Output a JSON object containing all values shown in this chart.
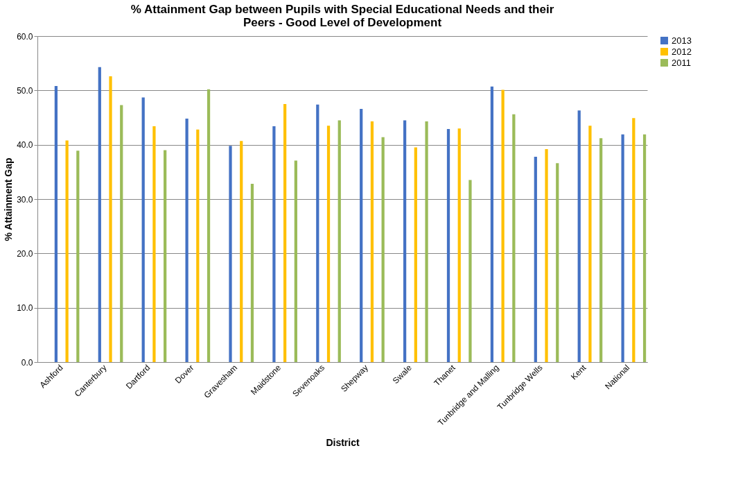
{
  "chart_data": {
    "type": "bar",
    "title": [
      "% Attainment Gap between Pupils with Special Educational Needs and their",
      "Peers - Good Level of Development"
    ],
    "xlabel": "District",
    "ylabel": "% Attainment Gap",
    "categories": [
      "Ashford",
      "Canterbury",
      "Dartford",
      "Dover",
      "Gravesham",
      "Maidstone",
      "Sevenoaks",
      "Shepway",
      "Swale",
      "Thanet",
      "Tunbridge and Malling",
      "Tunbridge Wells",
      "Kent",
      "National"
    ],
    "series": [
      {
        "name": "2013",
        "color": "#4472c4",
        "values": [
          50.8,
          54.3,
          48.7,
          44.8,
          39.8,
          43.4,
          47.4,
          46.6,
          44.5,
          42.9,
          50.7,
          37.8,
          46.3,
          41.9
        ]
      },
      {
        "name": "2012",
        "color": "#ffc000",
        "values": [
          40.8,
          52.6,
          43.4,
          42.8,
          40.7,
          47.5,
          43.5,
          44.3,
          39.5,
          43.0,
          50.1,
          39.2,
          43.5,
          44.9
        ]
      },
      {
        "name": "2011",
        "color": "#9bbb59",
        "values": [
          38.9,
          47.3,
          39.0,
          50.2,
          32.8,
          37.1,
          44.5,
          41.4,
          44.3,
          33.5,
          45.6,
          36.6,
          41.2,
          41.9
        ]
      }
    ],
    "ylim": [
      0,
      60
    ],
    "yticks": [
      {
        "value": 0,
        "label": "0.0"
      },
      {
        "value": 10,
        "label": "10.0"
      },
      {
        "value": 20,
        "label": "20.0"
      },
      {
        "value": 30,
        "label": "30.0"
      },
      {
        "value": 40,
        "label": "40.0"
      },
      {
        "value": 50,
        "label": "50.0"
      },
      {
        "value": 60,
        "label": "60.0"
      }
    ],
    "grid": "y",
    "legend": "right"
  }
}
